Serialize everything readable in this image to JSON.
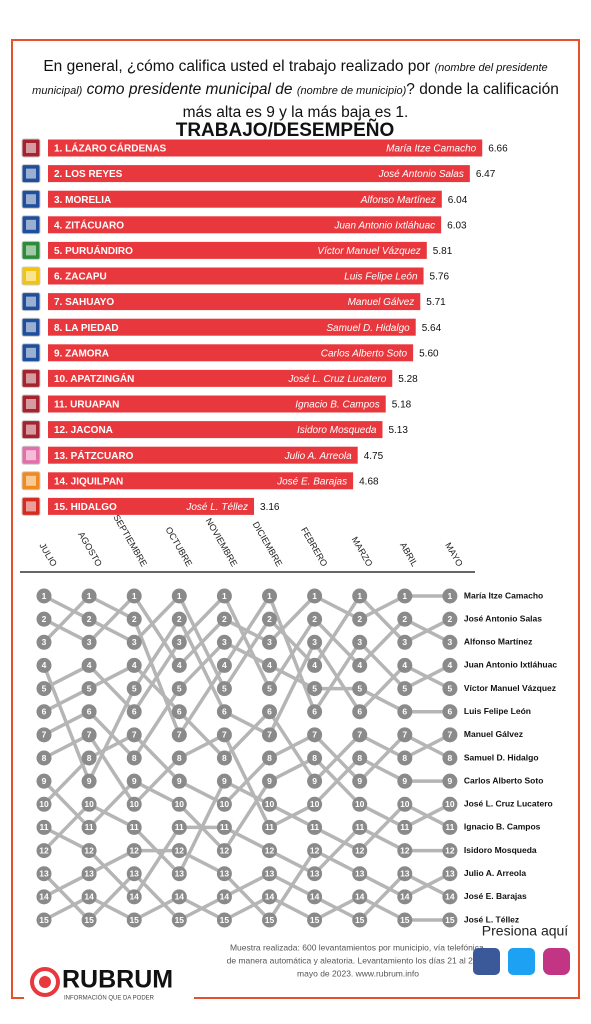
{
  "header": {
    "question": [
      "En general, ¿cómo califica usted el trabajo realizado por",
      "(nombre del presidente municipal)",
      "como presidente municipal de",
      "(nombre de municipio)",
      "? donde la calificación más alta es 9 y la más baja es 1."
    ]
  },
  "chart_data": [
    {
      "type": "bar",
      "title": "TRABAJO/DESEMPEÑO",
      "categories": [
        "1. LÁZARO CÁRDENAS",
        "2. LOS REYES",
        "3. MORELIA",
        "4. ZITÁCUARO",
        "5. PURUÁNDIRO",
        "6. ZACAPU",
        "7. SAHUAYO",
        "8. LA PIEDAD",
        "9. ZAMORA",
        "10. APATZINGÁN",
        "11. URUAPAN",
        "12. JACONA",
        "13. PÁTZCUARO",
        "14. JIQUILPAN",
        "15. HIDALGO"
      ],
      "names": [
        "María Itze Camacho",
        "José Antonio Salas",
        "Alfonso Martínez",
        "Juan Antonio Ixtláhuac",
        "Víctor Manuel Vázquez",
        "Luis Felipe León",
        "Manuel Gálvez",
        "Samuel D. Hidalgo",
        "Carlos Alberto Soto",
        "José L. Cruz Lucatero",
        "Ignacio B. Campos",
        "Isidoro Mosqueda",
        "Julio A. Arreola",
        "José E. Barajas",
        "José L. Téllez"
      ],
      "values": [
        6.66,
        6.47,
        6.04,
        6.03,
        5.81,
        5.76,
        5.71,
        5.64,
        5.6,
        5.28,
        5.18,
        5.13,
        4.75,
        4.68,
        3.16
      ],
      "value_labels": [
        "6.66",
        "6.47",
        "6.04",
        "6.03",
        "5.81",
        "5.76",
        "5.71",
        "5.64",
        "5.60",
        "5.28",
        "5.18",
        "5.13",
        "4.75",
        "4.68",
        "3.16"
      ],
      "color": "#e8383d",
      "party_colors": [
        "#a4232e",
        "#1f4e9c",
        "#1f4e9c",
        "#1f4e9c",
        "#2e8b3a",
        "#f1c40f",
        "#1f4e9c",
        "#1f4e9c",
        "#1f4e9c",
        "#a4232e",
        "#a4232e",
        "#a4232e",
        "#e46fa8",
        "#f08a1c",
        "#d62b1f"
      ],
      "xlim": [
        0,
        7.5
      ]
    },
    {
      "type": "bump",
      "categories": [
        "JULIO",
        "AGOSTO",
        "SEPTIEMBRE",
        "OCTUBRE",
        "NOVIEMBRE",
        "DICIEMBRE",
        "FEBRERO",
        "MARZO",
        "ABRIL",
        "MAYO"
      ],
      "ylim": [
        15,
        1
      ],
      "color": "#b5b5b5",
      "series": [
        {
          "name": "María Itze Camacho",
          "values": [
            2,
            3,
            1,
            4,
            2,
            3,
            1,
            2,
            1,
            1
          ]
        },
        {
          "name": "José Antonio Salas",
          "values": [
            1,
            2,
            3,
            1,
            5,
            2,
            4,
            1,
            3,
            2
          ]
        },
        {
          "name": "Alfonso Martínez",
          "values": [
            5,
            4,
            6,
            3,
            1,
            5,
            2,
            4,
            2,
            3
          ]
        },
        {
          "name": "Juan Antonio Ixtláhuac",
          "values": [
            3,
            1,
            2,
            7,
            4,
            1,
            6,
            3,
            5,
            4
          ]
        },
        {
          "name": "Víctor Manuel Vázquez",
          "values": [
            4,
            9,
            5,
            2,
            6,
            7,
            3,
            6,
            4,
            5
          ]
        },
        {
          "name": "Luis Felipe León",
          "values": [
            7,
            6,
            8,
            5,
            3,
            4,
            5,
            5,
            6,
            6
          ]
        },
        {
          "name": "Manuel Gálvez",
          "values": [
            6,
            5,
            4,
            6,
            8,
            6,
            9,
            7,
            8,
            7
          ]
        },
        {
          "name": "Samuel D. Hidalgo",
          "values": [
            10,
            8,
            7,
            9,
            10,
            8,
            7,
            9,
            7,
            8
          ]
        },
        {
          "name": "Carlos Alberto Soto",
          "values": [
            8,
            7,
            10,
            8,
            7,
            11,
            10,
            8,
            9,
            9
          ]
        },
        {
          "name": "José L. Cruz Lucatero",
          "values": [
            9,
            11,
            9,
            10,
            12,
            9,
            8,
            10,
            11,
            10
          ]
        },
        {
          "name": "Ignacio B. Campos",
          "values": [
            12,
            10,
            11,
            13,
            9,
            10,
            11,
            12,
            10,
            11
          ]
        },
        {
          "name": "Isidoro Mosqueda",
          "values": [
            11,
            12,
            14,
            11,
            11,
            12,
            13,
            11,
            12,
            12
          ]
        },
        {
          "name": "Julio A. Arreola",
          "values": [
            14,
            13,
            12,
            12,
            13,
            15,
            12,
            13,
            14,
            13
          ]
        },
        {
          "name": "José E. Barajas",
          "values": [
            13,
            15,
            13,
            15,
            14,
            13,
            14,
            15,
            13,
            14
          ]
        },
        {
          "name": "José L. Téllez",
          "values": [
            15,
            14,
            15,
            14,
            15,
            14,
            15,
            14,
            15,
            15
          ]
        }
      ]
    }
  ],
  "footer": {
    "cta": "Presiona aquí",
    "note": [
      "Muestra realizada: 600 levantamientos por municipio, vía telefónica,",
      "de manera automática y aleatoria. Levantamiento los días 21 al 27 de",
      "mayo de 2023. www.rubrum.info"
    ],
    "brand": "RUBRUM",
    "tagline": "INFORMACIÓN QUE DA PODER"
  }
}
